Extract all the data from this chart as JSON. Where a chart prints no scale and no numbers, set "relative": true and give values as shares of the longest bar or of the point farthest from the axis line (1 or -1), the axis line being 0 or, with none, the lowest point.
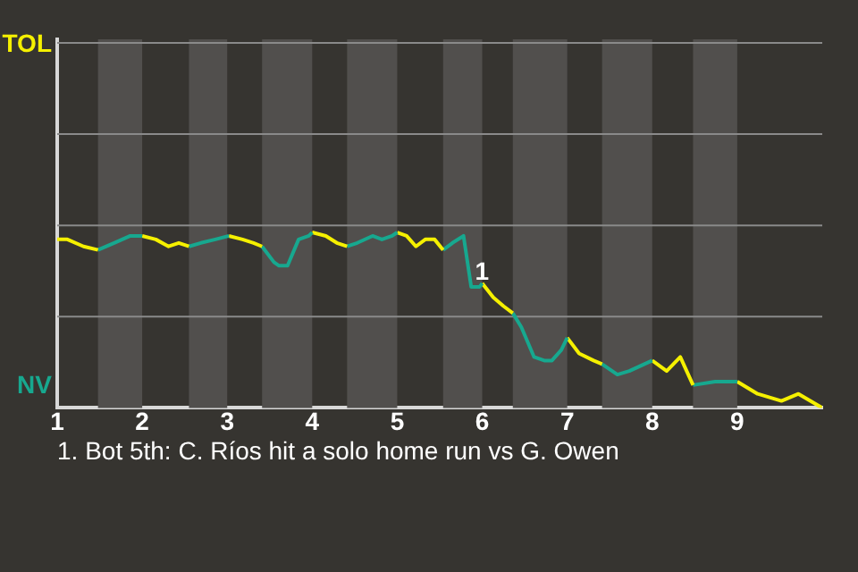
{
  "chart_data": {
    "type": "line",
    "relative": true,
    "series": [
      {
        "name": "TOL",
        "color": "#f5f000",
        "x": [
          1.0,
          1.12,
          1.31,
          1.48
        ],
        "values": [
          0.96,
          0.96,
          0.92,
          0.9
        ]
      },
      {
        "name": "NV",
        "color": "#17a88f",
        "x": [
          1.48,
          1.67,
          1.86,
          2.0
        ],
        "values": [
          0.9,
          0.94,
          0.98,
          0.98
        ]
      },
      {
        "color": "#f5f000",
        "x": [
          2.0,
          2.16,
          2.31,
          2.43,
          2.55
        ],
        "values": [
          0.98,
          0.96,
          0.92,
          0.94,
          0.92
        ]
      },
      {
        "color": "#17a88f",
        "x": [
          2.55,
          2.69,
          2.86,
          3.02
        ],
        "values": [
          0.92,
          0.94,
          0.96,
          0.98
        ]
      },
      {
        "color": "#f5f000",
        "x": [
          3.02,
          3.18,
          3.31,
          3.41
        ],
        "values": [
          0.98,
          0.96,
          0.94,
          0.92
        ]
      },
      {
        "color": "#17a88f",
        "x": [
          3.41,
          3.55,
          3.61,
          3.71,
          3.84,
          3.96,
          4.0
        ],
        "values": [
          0.92,
          0.83,
          0.81,
          0.81,
          0.96,
          0.98,
          1
        ]
      },
      {
        "color": "#f5f000",
        "x": [
          4.0,
          4.16,
          4.29,
          4.41
        ],
        "values": [
          1,
          0.98,
          0.94,
          0.92
        ]
      },
      {
        "color": "#17a88f",
        "x": [
          4.41,
          4.53,
          4.71,
          4.82,
          4.94,
          5.0
        ],
        "values": [
          0.92,
          0.94,
          0.98,
          0.96,
          0.98,
          1
        ]
      },
      {
        "color": "#f5f000",
        "x": [
          5.0,
          5.11,
          5.22,
          5.33,
          5.44,
          5.54
        ],
        "values": [
          1,
          0.98,
          0.92,
          0.96,
          0.96,
          0.9
        ]
      },
      {
        "color": "#17a88f",
        "x": [
          5.54,
          5.65,
          5.78,
          5.87,
          5.97,
          6.0
        ],
        "values": [
          0.9,
          0.94,
          0.98,
          0.69,
          0.69,
          0.71
        ]
      },
      {
        "color": "#f5f000",
        "x": [
          6.0,
          6.13,
          6.25,
          6.36
        ],
        "values": [
          0.71,
          0.63,
          0.58,
          0.54
        ]
      },
      {
        "color": "#17a88f",
        "x": [
          6.36,
          6.46,
          6.61,
          6.73,
          6.82,
          6.93,
          7.0
        ],
        "values": [
          0.54,
          0.46,
          0.29,
          0.27,
          0.27,
          0.33,
          0.4
        ]
      },
      {
        "color": "#f5f000",
        "x": [
          7.0,
          7.14,
          7.31,
          7.41
        ],
        "values": [
          0.4,
          0.31,
          0.27,
          0.25
        ]
      },
      {
        "color": "#17a88f",
        "x": [
          7.41,
          7.59,
          7.73,
          8.0
        ],
        "values": [
          0.25,
          0.19,
          0.21,
          0.27
        ]
      },
      {
        "color": "#f5f000",
        "x": [
          8.0,
          8.17,
          8.33,
          8.48
        ],
        "values": [
          0.27,
          0.21,
          0.29,
          0.13
        ]
      },
      {
        "color": "#17a88f",
        "x": [
          8.48,
          8.74,
          9.0
        ],
        "values": [
          0.13,
          0.15,
          0.15
        ]
      },
      {
        "color": "#f5f000",
        "x": [
          9.0,
          9.24,
          9.52,
          9.72,
          10.0
        ],
        "values": [
          0.15,
          0.08,
          0.04,
          0.08,
          0
        ]
      }
    ],
    "xlim": [
      1,
      10
    ],
    "xticks": [
      1,
      2,
      3,
      4,
      5,
      6,
      7,
      8,
      9
    ],
    "ref_lines": [
      {
        "axis": "y",
        "value": 0.52,
        "color": "#8a8a8a"
      },
      {
        "axis": "y",
        "value": 1.04,
        "color": "#8a8a8a"
      },
      {
        "axis": "y",
        "value": 1.56,
        "color": "#8a8a8a"
      },
      {
        "axis": "y",
        "value": 2.08,
        "color": "#8a8a8a"
      }
    ],
    "marker": "none",
    "bands": [
      {
        "axis": "x",
        "from": 1.48,
        "to": 2,
        "color": "#514f4d"
      },
      {
        "axis": "x",
        "from": 2.55,
        "to": 3,
        "color": "#514f4d"
      },
      {
        "axis": "x",
        "from": 3.41,
        "to": 4,
        "color": "#514f4d"
      },
      {
        "axis": "x",
        "from": 4.41,
        "to": 5,
        "color": "#514f4d"
      },
      {
        "axis": "x",
        "from": 5.54,
        "to": 6,
        "color": "#514f4d"
      },
      {
        "axis": "x",
        "from": 6.36,
        "to": 7,
        "color": "#514f4d"
      },
      {
        "axis": "x",
        "from": 7.41,
        "to": 8,
        "color": "#514f4d"
      },
      {
        "axis": "x",
        "from": 8.48,
        "to": 9,
        "color": "#514f4d"
      }
    ],
    "annotations": [
      {
        "text": "1",
        "x": 5.87,
        "y": 0.69
      },
      "1. Bot 5th: C. Ríos hit a solo home run vs G. Owen"
    ]
  }
}
